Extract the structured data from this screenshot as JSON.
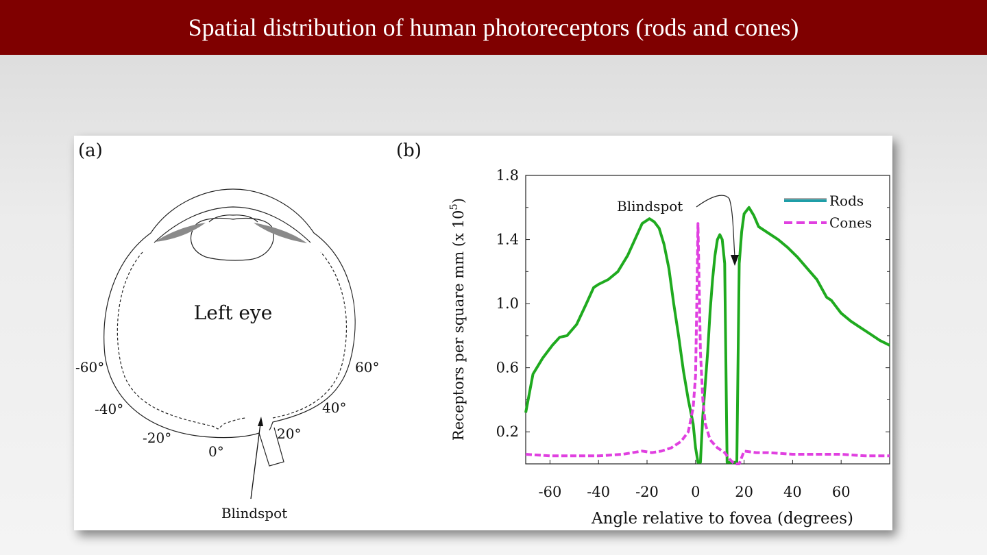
{
  "slide": {
    "title": "Spatial distribution of human photoreceptors (rods and cones)"
  },
  "panel_a": {
    "label": "(a)",
    "eye_label": "Left eye",
    "blindspot_label": "Blindspot",
    "angles": [
      "-60°",
      "-40°",
      "-20°",
      "0°",
      "20°",
      "40°",
      "60°"
    ]
  },
  "chart_data": {
    "panel_label": "(b)",
    "type": "line",
    "xlabel": "Angle relative to fovea (degrees)",
    "ylabel_main": "Receptors per square mm (x 10",
    "ylabel_exp": "5",
    "ylabel_close": ")",
    "xlim": [
      -70,
      80
    ],
    "ylim": [
      0,
      1.8
    ],
    "x_ticks": [
      -60,
      -40,
      -20,
      0,
      20,
      40,
      60
    ],
    "x_tick_labels": [
      "-60",
      "-40",
      "-20",
      "0",
      "20",
      "40",
      "60"
    ],
    "y_ticks": [
      0.2,
      0.6,
      1.0,
      1.4,
      1.8
    ],
    "y_tick_labels": [
      "0.2",
      "0.6",
      "1.0",
      "1.4",
      "1.8"
    ],
    "legend_position": "top-right",
    "annotation": "Blindspot",
    "series": [
      {
        "name": "Rods",
        "color": "#1faa1f",
        "style": "solid",
        "x": [
          -70,
          -67,
          -63,
          -59,
          -56,
          -53,
          -49,
          -45,
          -42,
          -40,
          -36,
          -32,
          -28,
          -25,
          -22,
          -19,
          -17,
          -15,
          -13,
          -11,
          -9,
          -7,
          -5,
          -3,
          -1,
          0,
          1,
          2,
          3,
          4,
          5,
          6,
          7,
          8,
          9,
          10,
          11,
          12,
          13,
          14,
          15,
          16,
          17,
          18,
          19,
          20,
          22,
          24,
          26,
          30,
          34,
          38,
          42,
          46,
          50,
          54,
          56,
          58,
          60,
          64,
          68,
          72,
          76,
          80
        ],
        "y": [
          0.32,
          0.56,
          0.66,
          0.74,
          0.79,
          0.8,
          0.87,
          1.0,
          1.1,
          1.12,
          1.15,
          1.2,
          1.3,
          1.4,
          1.5,
          1.53,
          1.51,
          1.47,
          1.37,
          1.22,
          1.0,
          0.8,
          0.58,
          0.4,
          0.25,
          0.1,
          0.01,
          0.01,
          0.3,
          0.5,
          0.7,
          0.95,
          1.15,
          1.3,
          1.4,
          1.43,
          1.4,
          1.25,
          0.01,
          0.01,
          0.01,
          0.01,
          0.01,
          1.25,
          1.45,
          1.56,
          1.6,
          1.55,
          1.48,
          1.44,
          1.4,
          1.35,
          1.29,
          1.22,
          1.15,
          1.04,
          1.02,
          0.98,
          0.94,
          0.89,
          0.85,
          0.81,
          0.77,
          0.74
        ]
      },
      {
        "name": "Cones",
        "color": "#e040e0",
        "style": "dashed",
        "x": [
          -70,
          -60,
          -50,
          -40,
          -30,
          -22,
          -18,
          -14,
          -10,
          -6,
          -3,
          -1,
          0,
          0.5,
          1,
          1.5,
          2,
          3,
          4,
          6,
          9,
          12,
          14,
          16,
          18,
          20,
          25,
          30,
          40,
          50,
          60,
          70,
          80
        ],
        "y": [
          0.06,
          0.05,
          0.05,
          0.05,
          0.06,
          0.08,
          0.07,
          0.08,
          0.1,
          0.14,
          0.2,
          0.35,
          0.55,
          1.0,
          1.5,
          1.1,
          0.7,
          0.4,
          0.25,
          0.15,
          0.1,
          0.07,
          0.03,
          0.0,
          0.0,
          0.08,
          0.07,
          0.07,
          0.06,
          0.06,
          0.06,
          0.05,
          0.05
        ]
      }
    ]
  }
}
